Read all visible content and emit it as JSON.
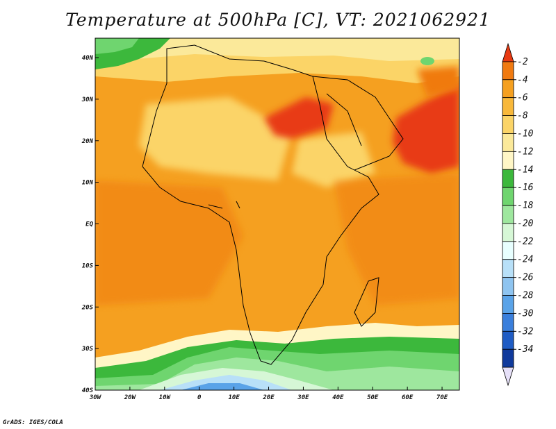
{
  "title": "Temperature at 500hPa [C], VT: 2021062921",
  "credit": "GrADS: IGES/COLA",
  "x_axis_labels": [
    "30W",
    "20W",
    "10W",
    "0",
    "10E",
    "20E",
    "30E",
    "40E",
    "50E",
    "60E",
    "70E"
  ],
  "y_axis_labels": [
    "40N",
    "30N",
    "20N",
    "10N",
    "EQ",
    "10S",
    "20S",
    "30S",
    "40S"
  ],
  "colorbar": {
    "labels": [
      "-2",
      "-4",
      "-6",
      "-8",
      "-10",
      "-12",
      "-14",
      "-16",
      "-18",
      "-20",
      "-22",
      "-24",
      "-26",
      "-28",
      "-30",
      "-32",
      "-34"
    ],
    "colors": [
      "#e83a12",
      "#f07a10",
      "#f5a020",
      "#f8b83a",
      "#fbd467",
      "#fbe99a",
      "#fff6c6",
      "#3cb83c",
      "#6fd56f",
      "#9ee79e",
      "#d6f7d6",
      "#e8ffff",
      "#b8e0f8",
      "#8ec4f0",
      "#5aa3e8",
      "#3a7fdc",
      "#1f5cc4",
      "#103a9c",
      "#1a2a78"
    ]
  },
  "map": {
    "variable": "Temperature at 500hPa",
    "units": "C",
    "valid_time": "2021062921",
    "lon_range": [
      -30,
      75
    ],
    "lat_range": [
      -40,
      45
    ]
  }
}
